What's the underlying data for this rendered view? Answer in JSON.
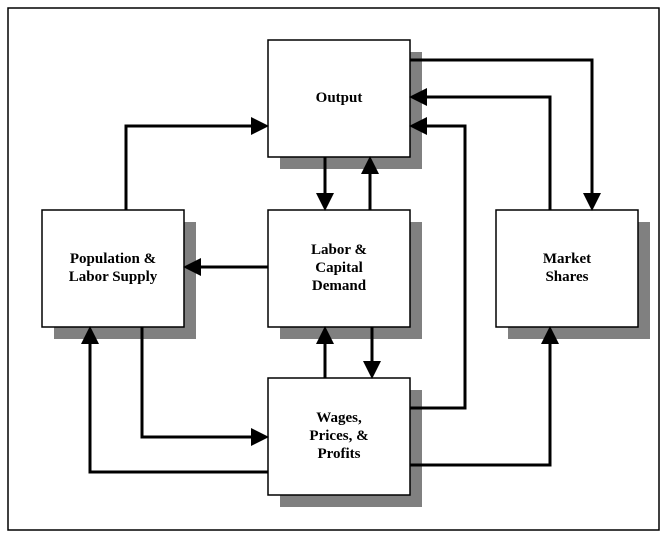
{
  "nodes": [
    {
      "lines": [
        "Output"
      ]
    },
    {
      "lines": [
        "Population &",
        "Labor Supply"
      ]
    },
    {
      "lines": [
        "Labor &",
        "Capital",
        "Demand"
      ]
    },
    {
      "lines": [
        "Market",
        "Shares"
      ]
    },
    {
      "lines": [
        "Wages,",
        "Prices, &",
        "Profits"
      ]
    }
  ]
}
